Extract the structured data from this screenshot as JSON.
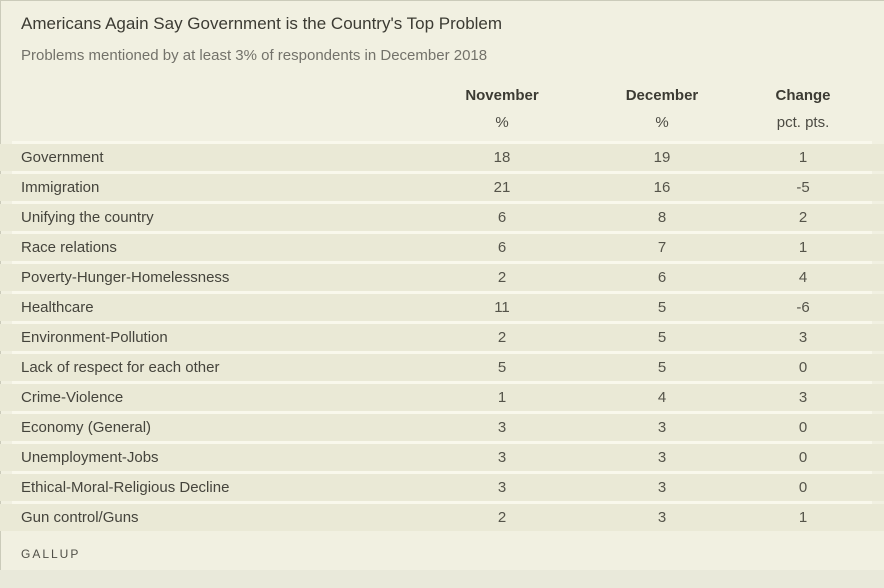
{
  "page": {
    "title": "Americans Again Say Government is the Country's Top Problem",
    "subtitle": "Problems mentioned by at least 3% of respondents in December 2018",
    "footer_brand": "GALLUP"
  },
  "chart_data": {
    "type": "table",
    "title": "Americans Again Say Government is the Country's Top Problem",
    "subtitle": "Problems mentioned by at least 3% of respondents in December 2018",
    "columns": [
      {
        "label": "November",
        "unit": "%"
      },
      {
        "label": "December",
        "unit": "%"
      },
      {
        "label": "Change",
        "unit": "pct. pts."
      }
    ],
    "rows": [
      {
        "problem": "Government",
        "november": 18,
        "december": 19,
        "change": 1
      },
      {
        "problem": "Immigration",
        "november": 21,
        "december": 16,
        "change": -5
      },
      {
        "problem": "Unifying the country",
        "november": 6,
        "december": 8,
        "change": 2
      },
      {
        "problem": "Race relations",
        "november": 6,
        "december": 7,
        "change": 1
      },
      {
        "problem": "Poverty-Hunger-Homelessness",
        "november": 2,
        "december": 6,
        "change": 4
      },
      {
        "problem": "Healthcare",
        "november": 11,
        "december": 5,
        "change": -6
      },
      {
        "problem": "Environment-Pollution",
        "november": 2,
        "december": 5,
        "change": 3
      },
      {
        "problem": "Lack of respect for each other",
        "november": 5,
        "december": 5,
        "change": 0
      },
      {
        "problem": "Crime-Violence",
        "november": 1,
        "december": 4,
        "change": 3
      },
      {
        "problem": "Economy (General)",
        "november": 3,
        "december": 3,
        "change": 0
      },
      {
        "problem": "Unemployment-Jobs",
        "november": 3,
        "december": 3,
        "change": 0
      },
      {
        "problem": "Ethical-Moral-Religious Decline",
        "november": 3,
        "december": 3,
        "change": 0
      },
      {
        "problem": "Gun control/Guns",
        "november": 2,
        "december": 3,
        "change": 1
      }
    ]
  },
  "colors": {
    "background": "#f1f0e1",
    "row_band": "#eae9d6",
    "row_separator": "#f9f8ec",
    "title_text": "#3c3b33",
    "subtitle_text": "#73726a",
    "body_text": "#45443c",
    "bottom_strip": "#e9e9da"
  }
}
